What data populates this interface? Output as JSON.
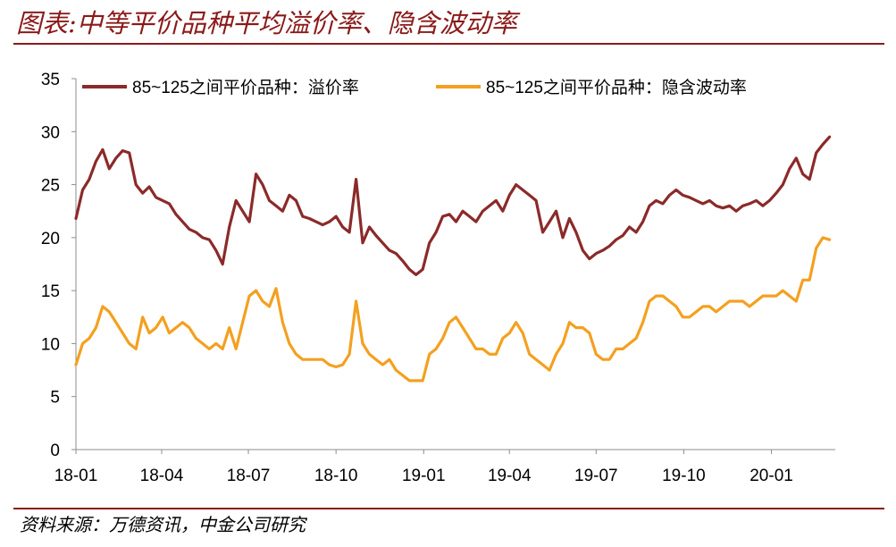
{
  "header": {
    "title": "图表:中等平价品种平均溢价率、隐含波动率"
  },
  "footer": {
    "source": "资料来源：万德资讯，中金公司研究"
  },
  "chart_data": {
    "type": "line",
    "title": "图表:中等平价品种平均溢价率、隐含波动率",
    "xlabel": "",
    "ylabel": "",
    "ylim": [
      0,
      35
    ],
    "yticks": [
      "0",
      "5",
      "10",
      "15",
      "20",
      "25",
      "30",
      "35"
    ],
    "xticks": [
      "18-01",
      "18-04",
      "18-07",
      "18-10",
      "19-01",
      "19-04",
      "19-07",
      "19-10",
      "20-01"
    ],
    "grid": false,
    "legend_position": "top",
    "series": [
      {
        "name": "85~125之间平价品种：溢价率",
        "color": "#8b2a2a",
        "x": [
          "2018-01-01",
          "2018-01-08",
          "2018-01-15",
          "2018-01-22",
          "2018-01-29",
          "2018-02-05",
          "2018-02-12",
          "2018-02-19",
          "2018-02-26",
          "2018-03-05",
          "2018-03-12",
          "2018-03-19",
          "2018-03-26",
          "2018-04-02",
          "2018-04-09",
          "2018-04-16",
          "2018-04-23",
          "2018-04-30",
          "2018-05-07",
          "2018-05-14",
          "2018-05-21",
          "2018-05-28",
          "2018-06-04",
          "2018-06-11",
          "2018-06-18",
          "2018-06-25",
          "2018-07-02",
          "2018-07-09",
          "2018-07-16",
          "2018-07-23",
          "2018-07-30",
          "2018-08-06",
          "2018-08-13",
          "2018-08-20",
          "2018-08-27",
          "2018-09-03",
          "2018-09-10",
          "2018-09-17",
          "2018-09-24",
          "2018-10-01",
          "2018-10-08",
          "2018-10-15",
          "2018-10-22",
          "2018-10-29",
          "2018-11-05",
          "2018-11-12",
          "2018-11-19",
          "2018-11-26",
          "2018-12-03",
          "2018-12-10",
          "2018-12-17",
          "2018-12-24",
          "2018-12-31",
          "2019-01-07",
          "2019-01-14",
          "2019-01-21",
          "2019-01-28",
          "2019-02-04",
          "2019-02-11",
          "2019-02-18",
          "2019-02-25",
          "2019-03-04",
          "2019-03-11",
          "2019-03-18",
          "2019-03-25",
          "2019-04-01",
          "2019-04-08",
          "2019-04-15",
          "2019-04-22",
          "2019-04-29",
          "2019-05-06",
          "2019-05-13",
          "2019-05-20",
          "2019-05-27",
          "2019-06-03",
          "2019-06-10",
          "2019-06-17",
          "2019-06-24",
          "2019-07-01",
          "2019-07-08",
          "2019-07-15",
          "2019-07-22",
          "2019-07-29",
          "2019-08-05",
          "2019-08-12",
          "2019-08-19",
          "2019-08-26",
          "2019-09-02",
          "2019-09-09",
          "2019-09-16",
          "2019-09-23",
          "2019-09-30",
          "2019-10-07",
          "2019-10-14",
          "2019-10-21",
          "2019-10-28",
          "2019-11-04",
          "2019-11-11",
          "2019-11-18",
          "2019-11-25",
          "2019-12-02",
          "2019-12-09",
          "2019-12-16",
          "2019-12-23",
          "2019-12-30",
          "2020-01-06",
          "2020-01-13",
          "2020-01-20",
          "2020-01-27",
          "2020-02-03",
          "2020-02-10",
          "2020-02-17",
          "2020-02-24",
          "2020-03-02"
        ],
        "values": [
          21.8,
          24.5,
          25.5,
          27.2,
          28.3,
          26.5,
          27.5,
          28.2,
          28.0,
          25.0,
          24.2,
          24.8,
          23.8,
          23.5,
          23.2,
          22.2,
          21.5,
          20.8,
          20.5,
          20.0,
          19.8,
          18.8,
          17.5,
          21.0,
          23.5,
          22.5,
          21.5,
          26.0,
          25.0,
          23.5,
          23.0,
          22.5,
          24.0,
          23.5,
          22.0,
          21.8,
          21.5,
          21.2,
          21.5,
          22.0,
          21.0,
          20.5,
          25.5,
          19.5,
          21.0,
          20.2,
          19.5,
          18.8,
          18.5,
          17.8,
          17.0,
          16.5,
          17.0,
          19.5,
          20.5,
          22.0,
          22.2,
          21.5,
          22.5,
          22.0,
          21.5,
          22.5,
          23.0,
          23.5,
          22.5,
          24.0,
          25.0,
          24.5,
          24.0,
          23.5,
          20.5,
          21.5,
          22.5,
          20.0,
          21.8,
          20.5,
          18.8,
          18.0,
          18.5,
          18.8,
          19.2,
          19.8,
          20.2,
          21.0,
          20.5,
          21.5,
          23.0,
          23.5,
          23.2,
          24.0,
          24.5,
          24.0,
          23.8,
          23.5,
          23.2,
          23.5,
          23.0,
          22.8,
          23.0,
          22.5,
          23.0,
          23.2,
          23.5,
          23.0,
          23.5,
          24.2,
          25.0,
          26.5,
          27.5,
          26.0,
          25.5,
          28.0,
          28.8,
          29.5
        ]
      },
      {
        "name": "85~125之间平价品种：隐含波动率",
        "color": "#f4a020",
        "x": [
          "2018-01-01",
          "2018-01-08",
          "2018-01-15",
          "2018-01-22",
          "2018-01-29",
          "2018-02-05",
          "2018-02-12",
          "2018-02-19",
          "2018-02-26",
          "2018-03-05",
          "2018-03-12",
          "2018-03-19",
          "2018-03-26",
          "2018-04-02",
          "2018-04-09",
          "2018-04-16",
          "2018-04-23",
          "2018-04-30",
          "2018-05-07",
          "2018-05-14",
          "2018-05-21",
          "2018-05-28",
          "2018-06-04",
          "2018-06-11",
          "2018-06-18",
          "2018-06-25",
          "2018-07-02",
          "2018-07-09",
          "2018-07-16",
          "2018-07-23",
          "2018-07-30",
          "2018-08-06",
          "2018-08-13",
          "2018-08-20",
          "2018-08-27",
          "2018-09-03",
          "2018-09-10",
          "2018-09-17",
          "2018-09-24",
          "2018-10-01",
          "2018-10-08",
          "2018-10-15",
          "2018-10-22",
          "2018-10-29",
          "2018-11-05",
          "2018-11-12",
          "2018-11-19",
          "2018-11-26",
          "2018-12-03",
          "2018-12-10",
          "2018-12-17",
          "2018-12-24",
          "2018-12-31",
          "2019-01-07",
          "2019-01-14",
          "2019-01-21",
          "2019-01-28",
          "2019-02-04",
          "2019-02-11",
          "2019-02-18",
          "2019-02-25",
          "2019-03-04",
          "2019-03-11",
          "2019-03-18",
          "2019-03-25",
          "2019-04-01",
          "2019-04-08",
          "2019-04-15",
          "2019-04-22",
          "2019-04-29",
          "2019-05-06",
          "2019-05-13",
          "2019-05-20",
          "2019-05-27",
          "2019-06-03",
          "2019-06-10",
          "2019-06-17",
          "2019-06-24",
          "2019-07-01",
          "2019-07-08",
          "2019-07-15",
          "2019-07-22",
          "2019-07-29",
          "2019-08-05",
          "2019-08-12",
          "2019-08-19",
          "2019-08-26",
          "2019-09-02",
          "2019-09-09",
          "2019-09-16",
          "2019-09-23",
          "2019-09-30",
          "2019-10-07",
          "2019-10-14",
          "2019-10-21",
          "2019-10-28",
          "2019-11-04",
          "2019-11-11",
          "2019-11-18",
          "2019-11-25",
          "2019-12-02",
          "2019-12-09",
          "2019-12-16",
          "2019-12-23",
          "2019-12-30",
          "2020-01-06",
          "2020-01-13",
          "2020-01-20",
          "2020-01-27",
          "2020-02-03",
          "2020-02-10",
          "2020-02-17",
          "2020-02-24",
          "2020-03-02"
        ],
        "values": [
          8.0,
          10.0,
          10.5,
          11.5,
          13.5,
          13.0,
          12.0,
          11.0,
          10.0,
          9.5,
          12.5,
          11.0,
          11.5,
          12.5,
          11.0,
          11.5,
          12.0,
          11.5,
          10.5,
          10.0,
          9.5,
          10.0,
          9.5,
          11.5,
          9.5,
          12.0,
          14.5,
          15.0,
          14.0,
          13.5,
          15.2,
          12.0,
          10.0,
          9.0,
          8.5,
          8.5,
          8.5,
          8.5,
          8.0,
          7.8,
          8.0,
          9.0,
          14.0,
          10.0,
          9.0,
          8.5,
          8.0,
          8.5,
          7.5,
          7.0,
          6.5,
          6.5,
          6.5,
          9.0,
          9.5,
          10.5,
          12.0,
          12.5,
          11.5,
          10.5,
          9.5,
          9.5,
          9.0,
          9.0,
          10.5,
          11.0,
          12.0,
          11.0,
          9.0,
          8.5,
          8.0,
          7.5,
          9.0,
          10.0,
          12.0,
          11.5,
          11.5,
          11.0,
          9.0,
          8.5,
          8.5,
          9.5,
          9.5,
          10.0,
          10.5,
          12.0,
          14.0,
          14.5,
          14.5,
          14.0,
          13.5,
          12.5,
          12.5,
          13.0,
          13.5,
          13.5,
          13.0,
          13.5,
          14.0,
          14.0,
          14.0,
          13.5,
          14.0,
          14.5,
          14.5,
          14.5,
          15.0,
          14.5,
          14.0,
          16.0,
          16.0,
          19.0,
          20.0,
          19.8
        ]
      }
    ]
  }
}
